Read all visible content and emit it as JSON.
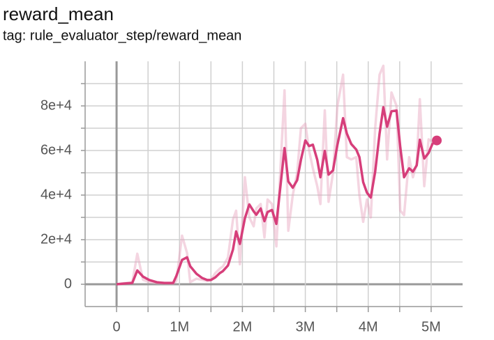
{
  "chart_data": {
    "type": "line",
    "title": "reward_mean",
    "subtitle": "tag: rule_evaluator_step/reward_mean",
    "x": [
      0,
      120000,
      250000,
      330000,
      420000,
      520000,
      640000,
      760000,
      900000,
      950000,
      1040000,
      1120000,
      1170000,
      1270000,
      1360000,
      1440000,
      1500000,
      1570000,
      1640000,
      1690000,
      1770000,
      1850000,
      1900000,
      1960000,
      2040000,
      2110000,
      2180000,
      2220000,
      2290000,
      2350000,
      2400000,
      2470000,
      2540000,
      2670000,
      2730000,
      2800000,
      2870000,
      2930000,
      3000000,
      3060000,
      3120000,
      3190000,
      3240000,
      3310000,
      3370000,
      3440000,
      3510000,
      3600000,
      3660000,
      3730000,
      3810000,
      3860000,
      3920000,
      3980000,
      4040000,
      4110000,
      4180000,
      4240000,
      4300000,
      4370000,
      4450000,
      4510000,
      4570000,
      4650000,
      4710000,
      4770000,
      4820000,
      4890000,
      4960000,
      5020000,
      5090000
    ],
    "series": [
      {
        "color": "#e7a2bd",
        "opacity": 0.45,
        "values": [
          0,
          500,
          800,
          13700,
          2000,
          1000,
          500,
          400,
          300,
          1500,
          21800,
          14000,
          1000,
          2500,
          2000,
          1500,
          2000,
          5000,
          7000,
          8000,
          12000,
          29000,
          33000,
          9000,
          48000,
          30000,
          26000,
          34000,
          36000,
          21000,
          38000,
          36000,
          17000,
          87000,
          24000,
          40000,
          50000,
          70000,
          72000,
          60000,
          52000,
          44000,
          36000,
          78000,
          37000,
          50000,
          80000,
          94000,
          57000,
          56000,
          57000,
          40000,
          28000,
          38000,
          30000,
          70000,
          94000,
          98000,
          56000,
          86000,
          80000,
          33000,
          31000,
          57000,
          48000,
          54000,
          83000,
          44000,
          65000,
          64000,
          64500
        ]
      },
      {
        "color": "#d63e7a",
        "opacity": 1,
        "end_marker": true,
        "values": [
          0,
          300,
          600,
          6200,
          3400,
          1900,
          900,
          600,
          600,
          3700,
          10900,
          12100,
          8100,
          4700,
          2800,
          1900,
          1900,
          3100,
          5000,
          5900,
          8400,
          15600,
          23700,
          18100,
          29600,
          35800,
          32700,
          31200,
          34000,
          28300,
          32400,
          33300,
          27100,
          61100,
          46100,
          43300,
          46700,
          55800,
          64500,
          62000,
          62600,
          55800,
          48000,
          59800,
          49200,
          51100,
          62600,
          74500,
          67600,
          62900,
          60400,
          57000,
          45800,
          41100,
          38900,
          50500,
          67600,
          79400,
          70700,
          77600,
          77900,
          61400,
          48000,
          52000,
          50500,
          53300,
          64800,
          56400,
          58900,
          62900,
          64500
        ]
      }
    ],
    "xlim": [
      -500000,
      5500000
    ],
    "xticks": [
      0,
      {
        "value": 1000000,
        "label": "1M"
      },
      {
        "value": 2000000,
        "label": "2M"
      },
      {
        "value": 3000000,
        "label": "3M"
      },
      {
        "value": 4000000,
        "label": "4M"
      },
      {
        "value": 5000000,
        "label": "5M"
      }
    ],
    "ylim": [
      -10000,
      100000
    ],
    "yticks": [
      0,
      {
        "value": 20000,
        "label": "2e+4"
      },
      {
        "value": 40000,
        "label": "4e+4"
      },
      {
        "value": 60000,
        "label": "6e+4"
      },
      {
        "value": 80000,
        "label": "8e+4"
      }
    ],
    "grid": true
  }
}
